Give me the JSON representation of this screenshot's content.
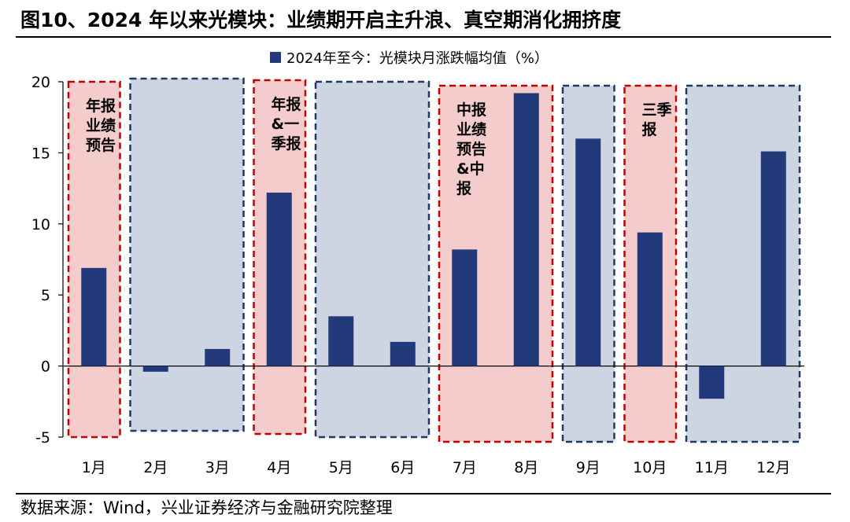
{
  "header": {
    "title": "图10、2024 年以来光模块：业绩期开启主升浪、真空期消化拥挤度"
  },
  "footer": {
    "source": "数据来源：Wind，兴业证券经济与金融研究院整理"
  },
  "chart_data": {
    "type": "bar",
    "categories": [
      "1月",
      "2月",
      "3月",
      "4月",
      "5月",
      "6月",
      "7月",
      "8月",
      "9月",
      "10月",
      "11月",
      "12月"
    ],
    "series": [
      {
        "name": "2024年至今：光模块月涨跌幅均值（%）",
        "values": [
          6.9,
          -0.4,
          1.2,
          12.2,
          3.5,
          1.7,
          8.2,
          19.2,
          16.0,
          9.4,
          -2.3,
          15.1
        ],
        "color": "#233A7A"
      }
    ],
    "ylim": [
      -5,
      20
    ],
    "yticks": [
      20,
      15,
      10,
      5,
      0,
      -5
    ],
    "legend_position": "top",
    "grid": false,
    "periods": [
      {
        "kind": "earnings",
        "label": [
          "年报",
          "业绩",
          "预告"
        ],
        "start": 0,
        "end": 0
      },
      {
        "kind": "vacuum",
        "label": [],
        "start": 1,
        "end": 2
      },
      {
        "kind": "earnings",
        "label": [
          "年报",
          "&一",
          "季报"
        ],
        "start": 3,
        "end": 3
      },
      {
        "kind": "vacuum",
        "label": [],
        "start": 4,
        "end": 5
      },
      {
        "kind": "earnings",
        "label": [
          "中报",
          "业绩",
          "预告",
          "&中",
          "报"
        ],
        "start": 6,
        "end": 7
      },
      {
        "kind": "vacuum",
        "label": [],
        "start": 8,
        "end": 8
      },
      {
        "kind": "earnings",
        "label": [
          "三季",
          "报"
        ],
        "start": 9,
        "end": 9
      },
      {
        "kind": "vacuum",
        "label": [],
        "start": 10,
        "end": 11
      }
    ],
    "colors": {
      "earnings_fill": "#F4CCCC",
      "earnings_border": "#C00000",
      "vacuum_fill": "#CDD5E3",
      "vacuum_border": "#1F3864"
    }
  }
}
